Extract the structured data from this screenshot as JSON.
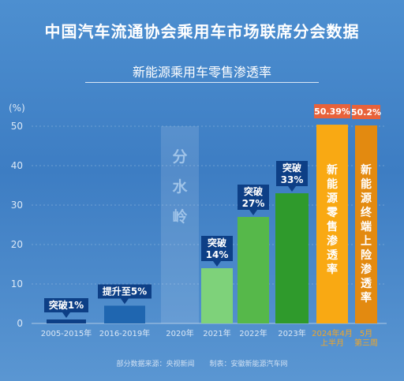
{
  "title": "中国汽车流通协会乘用车市场联席分会数据",
  "subtitle": "新能源乘用车零售渗透率",
  "unit": "(%)",
  "source_left": "部分数据来源：央视新闻",
  "source_right": "制表：安徽新能源汽车网",
  "colors": {
    "axis": "#9bbde0",
    "tick_text": "#dbe8f6",
    "label_bg": "#0d3f86",
    "highlight_bg": "#e8623a",
    "highlight_text": "#f5a623"
  },
  "chart_data": {
    "type": "bar",
    "ylim": [
      0,
      50
    ],
    "yticks": [
      0,
      10,
      20,
      30,
      40,
      50
    ],
    "categories": [
      "2005-2015年",
      "2016-2019年",
      "2020年",
      "2021年",
      "2022年",
      "2023年",
      "2024年4月上半月",
      "5月第三周"
    ],
    "category_lines": [
      [
        "2005-2015年"
      ],
      [
        "2016-2019年"
      ],
      [
        "2020年"
      ],
      [
        "2021年"
      ],
      [
        "2022年"
      ],
      [
        "2023年"
      ],
      [
        "2024年4月",
        "上半月"
      ],
      [
        "5月",
        "第三周"
      ]
    ],
    "values": [
      1,
      4.5,
      0,
      14,
      27,
      33,
      50.39,
      50.2
    ],
    "bar_colors": [
      "#0d3f86",
      "#1f66b0",
      "#4c86c8",
      "#7ed27a",
      "#56b84a",
      "#2f9a2c",
      "#f9a913",
      "#e38a10"
    ],
    "labels": [
      [
        "突破1%"
      ],
      [
        "提升至5%"
      ],
      [],
      [
        "突破",
        "14%"
      ],
      [
        "突破",
        "27%"
      ],
      [
        "突破",
        "33%"
      ],
      [
        "50.39%"
      ],
      [
        "50.2%"
      ]
    ],
    "vertical_texts": [
      "",
      "",
      "分水岭",
      "",
      "",
      "",
      "新能源零售渗透率",
      "新能源终端上险渗透率"
    ]
  }
}
